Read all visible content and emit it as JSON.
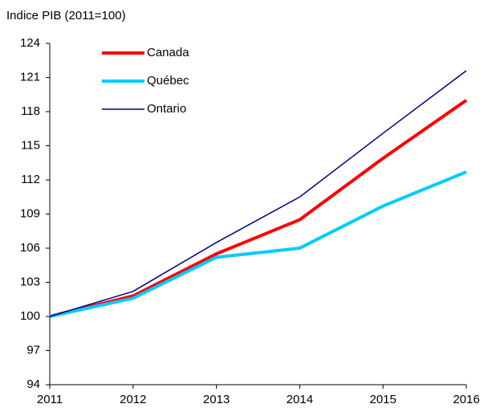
{
  "chart_data": {
    "type": "line",
    "ylabel": "Indice PIB (2011=100)",
    "x": [
      2011,
      2012,
      2013,
      2014,
      2015,
      2016
    ],
    "series": [
      {
        "name": "Canada",
        "color": "#ff0000",
        "values": [
          100,
          101.8,
          105.5,
          108.5,
          113.9,
          119.0
        ]
      },
      {
        "name": "Québec",
        "color": "#00ccff",
        "values": [
          100,
          101.6,
          105.2,
          106.0,
          109.7,
          112.7
        ]
      },
      {
        "name": "Ontario",
        "color": "#000080",
        "values": [
          100,
          102.2,
          106.5,
          110.5,
          116.1,
          121.6
        ]
      }
    ],
    "xlim": [
      2011,
      2016
    ],
    "xticks": [
      2011,
      2012,
      2013,
      2014,
      2015,
      2016
    ],
    "ylim": [
      94,
      124
    ],
    "yticks": [
      94,
      97,
      100,
      103,
      106,
      109,
      112,
      115,
      118,
      121,
      124
    ],
    "grid": false,
    "legend": "upper left"
  }
}
